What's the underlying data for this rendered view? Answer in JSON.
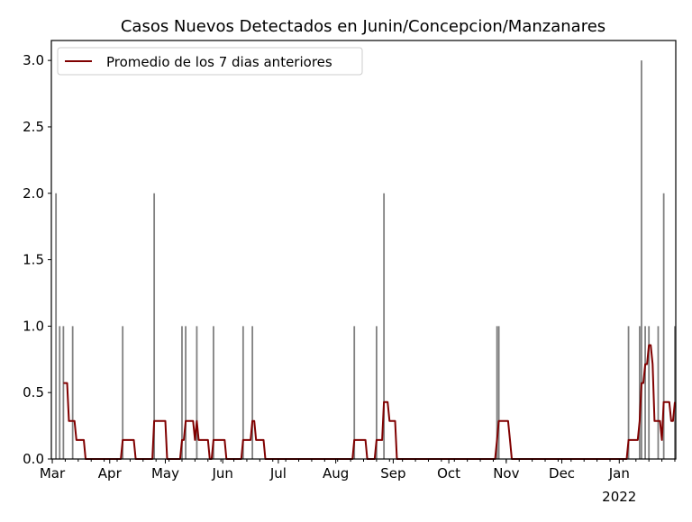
{
  "chart_data": {
    "type": "bar",
    "title": "Casos Nuevos Detectados en Junin/Concepcion/Manzanares",
    "xlabel": "",
    "ylabel": "",
    "xlim": [
      "2021-03-01",
      "2022-01-31"
    ],
    "ylim": [
      0,
      3.15
    ],
    "yticks": [
      0.0,
      0.5,
      1.0,
      1.5,
      2.0,
      2.5,
      3.0
    ],
    "xticks": [
      {
        "date": "2021-03-01",
        "label": "Mar"
      },
      {
        "date": "2021-04-01",
        "label": "Apr"
      },
      {
        "date": "2021-05-01",
        "label": "May"
      },
      {
        "date": "2021-06-01",
        "label": "Jun"
      },
      {
        "date": "2021-07-01",
        "label": "Jul"
      },
      {
        "date": "2021-08-01",
        "label": "Aug"
      },
      {
        "date": "2021-09-01",
        "label": "Sep"
      },
      {
        "date": "2021-10-01",
        "label": "Oct"
      },
      {
        "date": "2021-11-01",
        "label": "Nov"
      },
      {
        "date": "2021-12-01",
        "label": "Dec"
      },
      {
        "date": "2022-01-01",
        "label": "Jan",
        "sublabel": "2022"
      }
    ],
    "grid": false,
    "legend_position": "top-left",
    "bar_color": "#808080",
    "line_color": "#800000",
    "daily_cases": [
      {
        "date": "2021-03-03",
        "value": 2
      },
      {
        "date": "2021-03-05",
        "value": 1
      },
      {
        "date": "2021-03-07",
        "value": 1
      },
      {
        "date": "2021-03-12",
        "value": 1
      },
      {
        "date": "2021-04-08",
        "value": 1
      },
      {
        "date": "2021-04-25",
        "value": 2
      },
      {
        "date": "2021-05-10",
        "value": 1
      },
      {
        "date": "2021-05-12",
        "value": 1
      },
      {
        "date": "2021-05-18",
        "value": 1
      },
      {
        "date": "2021-05-27",
        "value": 1
      },
      {
        "date": "2021-06-12",
        "value": 1
      },
      {
        "date": "2021-06-17",
        "value": 1
      },
      {
        "date": "2021-08-11",
        "value": 1
      },
      {
        "date": "2021-08-23",
        "value": 1
      },
      {
        "date": "2021-08-27",
        "value": 2
      },
      {
        "date": "2021-10-27",
        "value": 1
      },
      {
        "date": "2021-10-28",
        "value": 1
      },
      {
        "date": "2022-01-06",
        "value": 1
      },
      {
        "date": "2022-01-12",
        "value": 1
      },
      {
        "date": "2022-01-13",
        "value": 3
      },
      {
        "date": "2022-01-15",
        "value": 1
      },
      {
        "date": "2022-01-17",
        "value": 1
      },
      {
        "date": "2022-01-22",
        "value": 1
      },
      {
        "date": "2022-01-25",
        "value": 2
      },
      {
        "date": "2022-01-31",
        "value": 1
      }
    ],
    "series": [
      {
        "name": "Promedio de los 7 dias anteriores",
        "type": "line",
        "window_days": 7
      }
    ]
  }
}
